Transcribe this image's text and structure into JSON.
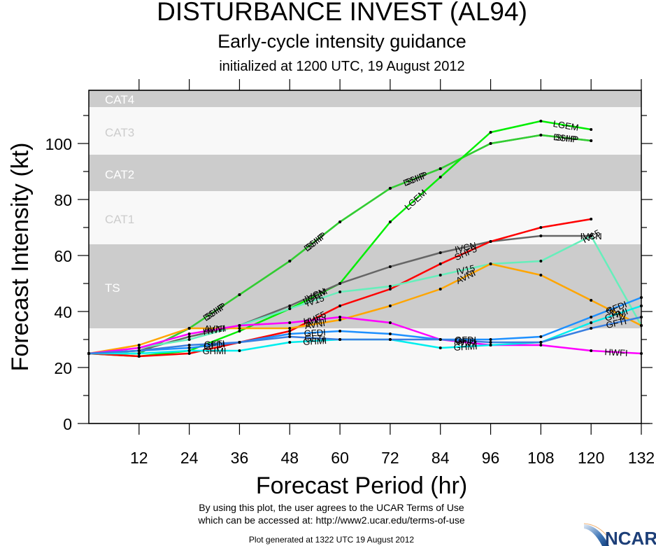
{
  "header": {
    "title": "DISTURBANCE INVEST (AL94)",
    "subtitle": "Early-cycle intensity guidance",
    "init_line": "initialized at 1200 UTC, 19 August 2012"
  },
  "footer": {
    "terms_line1": "By using this plot, the user agrees to the UCAR Terms of Use",
    "terms_line2": "which can be accessed at: http://www2.ucar.edu/terms-of-use",
    "generated": "Plot generated at 1322 UTC   19 August 2012",
    "logo_text": "NCAR"
  },
  "chart_data": {
    "type": "line",
    "title": "DISTURBANCE INVEST (AL94)",
    "xlabel": "Forecast Period (hr)",
    "ylabel": "Forecast Intensity (kt)",
    "xlim": [
      0,
      132
    ],
    "ylim": [
      0,
      119
    ],
    "xticks": [
      12,
      24,
      36,
      48,
      60,
      72,
      84,
      96,
      108,
      120,
      132
    ],
    "yticks": [
      0,
      20,
      40,
      60,
      80,
      100
    ],
    "grid": false,
    "bands": [
      {
        "label": "TS",
        "range": [
          34,
          64
        ],
        "shade": "#cccccc",
        "label_color": "#ffffff"
      },
      {
        "label": "CAT1",
        "range": [
          64,
          83
        ],
        "shade": "#f8f8f8",
        "label_color": "#cccccc"
      },
      {
        "label": "CAT2",
        "range": [
          83,
          96
        ],
        "shade": "#cccccc",
        "label_color": "#ffffff"
      },
      {
        "label": "CAT3",
        "range": [
          96,
          113
        ],
        "shade": "#f8f8f8",
        "label_color": "#cccccc"
      },
      {
        "label": "CAT4",
        "range": [
          113,
          119
        ],
        "shade": "#cccccc",
        "label_color": "#ffffff"
      }
    ],
    "below_ts_shade": "#f8f8f8",
    "series": [
      {
        "name": "DSHP",
        "color": "#33cc33",
        "x": [
          0,
          12,
          24,
          36,
          48,
          60,
          72,
          84,
          96,
          108,
          120
        ],
        "values": [
          25,
          25,
          34,
          46,
          58,
          72,
          84,
          91,
          100,
          103,
          101
        ]
      },
      {
        "name": "SHIP",
        "color": "#33cc33",
        "x": [
          0,
          12,
          24,
          36,
          48,
          60,
          72,
          84,
          96,
          108,
          120
        ],
        "values": [
          25,
          25,
          34,
          46,
          58,
          72,
          84,
          91,
          100,
          103,
          101
        ]
      },
      {
        "name": "LGEM",
        "color": "#00ee00",
        "x": [
          0,
          12,
          24,
          36,
          48,
          60,
          72,
          84,
          96,
          108,
          120
        ],
        "values": [
          25,
          24,
          26,
          33,
          41,
          50,
          72,
          88,
          104,
          108,
          105
        ]
      },
      {
        "name": "IVCN",
        "color": "#666666",
        "x": [
          0,
          12,
          24,
          36,
          48,
          60,
          72,
          84,
          96,
          108,
          120
        ],
        "values": [
          25,
          26,
          31,
          35,
          42,
          50,
          56,
          61,
          65,
          67,
          67
        ]
      },
      {
        "name": "SHF5",
        "color": "#ff0000",
        "x": [
          0,
          12,
          24,
          36,
          48,
          60,
          72,
          84,
          96,
          108,
          120
        ],
        "values": [
          25,
          24,
          25,
          29,
          33,
          42,
          48,
          57,
          65,
          70,
          73
        ]
      },
      {
        "name": "IV15",
        "color": "#66eebb",
        "x": [
          0,
          12,
          24,
          36,
          48,
          60,
          72,
          84,
          96,
          108,
          120,
          132
        ],
        "values": [
          25,
          27,
          30,
          35,
          41,
          47,
          49,
          53,
          57,
          58,
          67,
          35
        ]
      },
      {
        "name": "AVNI",
        "color": "#ffa500",
        "x": [
          0,
          12,
          24,
          36,
          48,
          60,
          72,
          84,
          96,
          108,
          120,
          132
        ],
        "values": [
          25,
          28,
          34,
          34,
          34,
          37,
          42,
          48,
          57,
          53,
          44,
          35
        ]
      },
      {
        "name": "HWFI",
        "color": "#ff00ff",
        "x": [
          0,
          12,
          24,
          36,
          48,
          60,
          72,
          84,
          96,
          108,
          120,
          132
        ],
        "values": [
          25,
          27,
          32,
          35,
          36,
          38,
          36,
          30,
          28,
          28,
          26,
          25
        ]
      },
      {
        "name": "GFDI",
        "color": "#1e90ff",
        "x": [
          0,
          12,
          24,
          36,
          48,
          60,
          72,
          84,
          96,
          108,
          120,
          132
        ],
        "values": [
          25,
          26,
          27,
          29,
          32,
          33,
          32,
          30,
          30,
          31,
          38,
          45
        ]
      },
      {
        "name": "GHMI",
        "color": "#00eeee",
        "x": [
          0,
          12,
          24,
          36,
          48,
          60,
          72,
          84,
          96,
          108,
          120,
          132
        ],
        "values": [
          25,
          25,
          26,
          26,
          29,
          30,
          30,
          27,
          28,
          29,
          36,
          42
        ]
      },
      {
        "name": "GFTI",
        "color": "#3a7fe0",
        "x": [
          0,
          12,
          24,
          36,
          48,
          60,
          72,
          84,
          96,
          108,
          120,
          132
        ],
        "values": [
          25,
          26,
          28,
          29,
          31,
          30,
          30,
          30,
          29,
          29,
          34,
          38
        ]
      }
    ],
    "annotations": [
      {
        "text": "DSHP",
        "series": "DSHP",
        "at_x": 30
      },
      {
        "text": "SHIP",
        "series": "SHIP",
        "at_x": 30
      },
      {
        "text": "DSHP",
        "series": "DSHP",
        "at_x": 54
      },
      {
        "text": "SHIP",
        "series": "SHIP",
        "at_x": 54
      },
      {
        "text": "DSHP",
        "series": "DSHP",
        "at_x": 78
      },
      {
        "text": "SHIP",
        "series": "SHIP",
        "at_x": 78
      },
      {
        "text": "SHIP",
        "series": "SHIP",
        "at_x": 114
      },
      {
        "text": "DSHP",
        "series": "DSHP",
        "at_x": 114
      },
      {
        "text": "LGEM",
        "series": "LGEM",
        "at_x": 54
      },
      {
        "text": "LGEM",
        "series": "LGEM",
        "at_x": 78
      },
      {
        "text": "LGEM",
        "series": "LGEM",
        "at_x": 114
      },
      {
        "text": "IVCN",
        "series": "IVCN",
        "at_x": 54
      },
      {
        "text": "IVCN",
        "series": "IVCN",
        "at_x": 90
      },
      {
        "text": "IVCN",
        "series": "IVCN",
        "at_x": 120
      },
      {
        "text": "IV15",
        "series": "IV15",
        "at_x": 54
      },
      {
        "text": "IV15",
        "series": "IV15",
        "at_x": 90
      },
      {
        "text": "IV15",
        "series": "IV15",
        "at_x": 120
      },
      {
        "text": "SHF5",
        "series": "SHF5",
        "at_x": 54
      },
      {
        "text": "SHF5",
        "series": "SHF5",
        "at_x": 90
      },
      {
        "text": "AVNI",
        "series": "AVNI",
        "at_x": 30
      },
      {
        "text": "AVNI",
        "series": "AVNI",
        "at_x": 54
      },
      {
        "text": "AVNI",
        "series": "AVNI",
        "at_x": 90
      },
      {
        "text": "AVNI",
        "series": "AVNI",
        "at_x": 126
      },
      {
        "text": "HWFI",
        "series": "HWFI",
        "at_x": 30
      },
      {
        "text": "HWFI",
        "series": "HWFI",
        "at_x": 54
      },
      {
        "text": "HWFI",
        "series": "HWFI",
        "at_x": 90
      },
      {
        "text": "HWFI",
        "series": "HWFI",
        "at_x": 126
      },
      {
        "text": "GFDI",
        "series": "GFDI",
        "at_x": 30
      },
      {
        "text": "GFDI",
        "series": "GFDI",
        "at_x": 54
      },
      {
        "text": "GFDI",
        "series": "GFDI",
        "at_x": 90
      },
      {
        "text": "GFDI",
        "series": "GFDI",
        "at_x": 126
      },
      {
        "text": "GHMI",
        "series": "GHMI",
        "at_x": 30
      },
      {
        "text": "GHMI",
        "series": "GHMI",
        "at_x": 54
      },
      {
        "text": "GHMI",
        "series": "GHMI",
        "at_x": 90
      },
      {
        "text": "GHMI",
        "series": "GHMI",
        "at_x": 126
      },
      {
        "text": "GFTI",
        "series": "GFTI",
        "at_x": 30
      },
      {
        "text": "GFTI",
        "series": "GFTI",
        "at_x": 54
      },
      {
        "text": "GFTI",
        "series": "GFTI",
        "at_x": 90
      },
      {
        "text": "GFTI",
        "series": "GFTI",
        "at_x": 126
      }
    ]
  }
}
